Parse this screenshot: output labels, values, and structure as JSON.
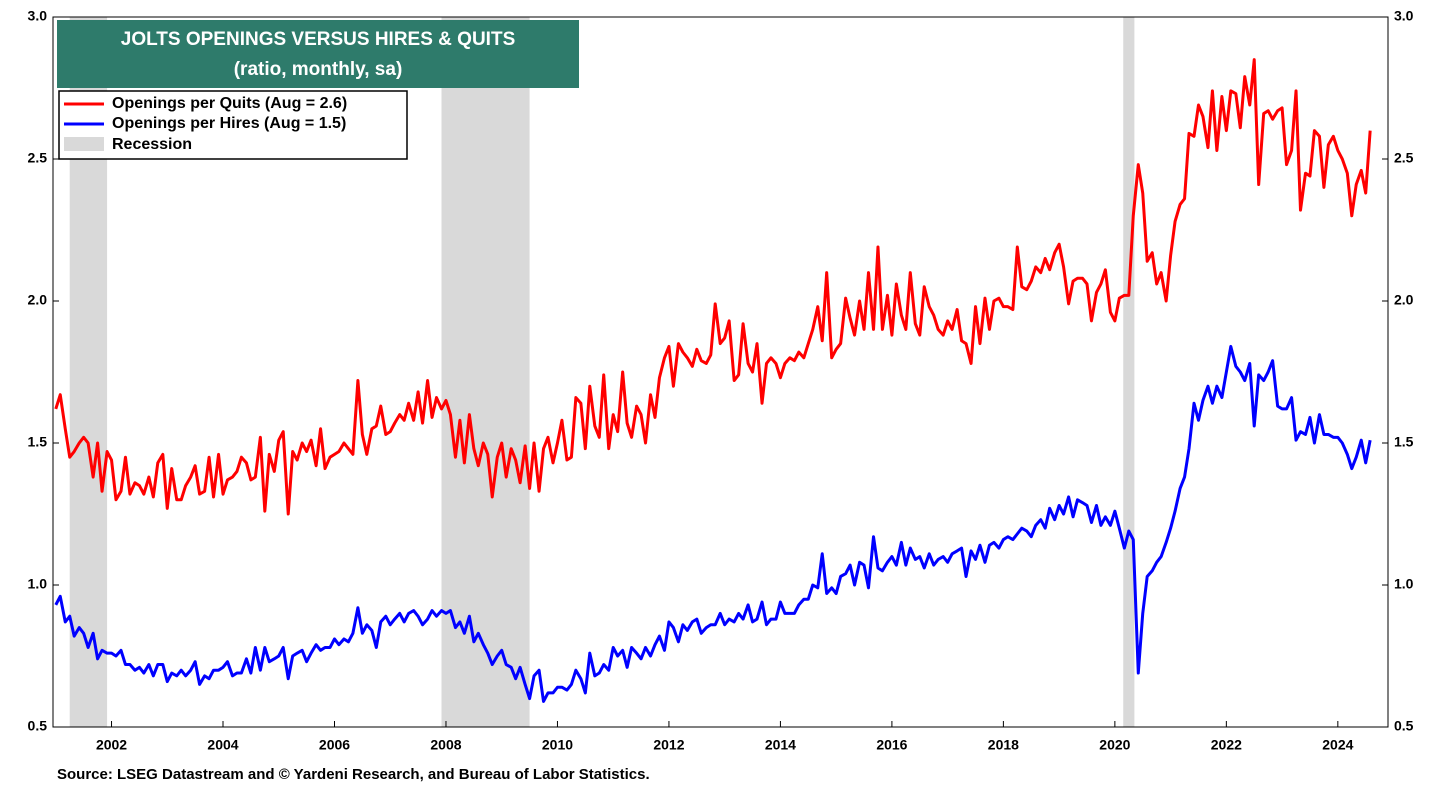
{
  "chart_data": {
    "type": "line",
    "title": "JOLTS OPENINGS VERSUS HIRES & QUITS",
    "subtitle": "(ratio, monthly, sa)",
    "source": "Source: LSEG Datastream and © Yardeni Research, and Bureau of Labor Statistics.",
    "recession_label": "Recession",
    "recession_color": "#d9d9d9",
    "recessions": [
      [
        2001.25,
        2001.92
      ],
      [
        2007.92,
        2009.5
      ],
      [
        2020.15,
        2020.35
      ]
    ],
    "xlim": [
      2000.95,
      2024.9
    ],
    "xticks": [
      2002,
      2004,
      2006,
      2008,
      2010,
      2012,
      2014,
      2016,
      2018,
      2020,
      2022,
      2024
    ],
    "ylim": [
      0.5,
      3.0
    ],
    "yticks": [
      {
        "value": 0.5,
        "label": "0.5"
      },
      {
        "value": 1,
        "label": "1.0"
      },
      {
        "value": 1.5,
        "label": "1.5"
      },
      {
        "value": 2,
        "label": "2.0"
      },
      {
        "value": 2.5,
        "label": "2.5"
      },
      {
        "value": 3,
        "label": "3.0"
      }
    ],
    "y2lim": [
      0.5,
      3.0
    ],
    "y2ticks": [
      {
        "value": 0.5,
        "label": "0.5"
      },
      {
        "value": 1,
        "label": "1.0"
      },
      {
        "value": 1.5,
        "label": "1.5"
      },
      {
        "value": 2,
        "label": "2.0"
      },
      {
        "value": 2.5,
        "label": "2.5"
      },
      {
        "value": 3,
        "label": "3.0"
      }
    ],
    "grid": false,
    "legend": "upper left",
    "x": [
      2001,
      2001.08,
      2001.17,
      2001.25,
      2001.33,
      2001.42,
      2001.5,
      2001.58,
      2001.67,
      2001.75,
      2001.83,
      2001.92,
      2002,
      2002.08,
      2002.17,
      2002.25,
      2002.33,
      2002.42,
      2002.5,
      2002.58,
      2002.67,
      2002.75,
      2002.83,
      2002.92,
      2003,
      2003.08,
      2003.17,
      2003.25,
      2003.33,
      2003.42,
      2003.5,
      2003.58,
      2003.67,
      2003.75,
      2003.83,
      2003.92,
      2004,
      2004.08,
      2004.17,
      2004.25,
      2004.33,
      2004.42,
      2004.5,
      2004.58,
      2004.67,
      2004.75,
      2004.83,
      2004.92,
      2005,
      2005.08,
      2005.17,
      2005.25,
      2005.33,
      2005.42,
      2005.5,
      2005.58,
      2005.67,
      2005.75,
      2005.83,
      2005.92,
      2006,
      2006.08,
      2006.17,
      2006.25,
      2006.33,
      2006.42,
      2006.5,
      2006.58,
      2006.67,
      2006.75,
      2006.83,
      2006.92,
      2007,
      2007.08,
      2007.17,
      2007.25,
      2007.33,
      2007.42,
      2007.5,
      2007.58,
      2007.67,
      2007.75,
      2007.83,
      2007.92,
      2008,
      2008.08,
      2008.17,
      2008.25,
      2008.33,
      2008.42,
      2008.5,
      2008.58,
      2008.67,
      2008.75,
      2008.83,
      2008.92,
      2009,
      2009.08,
      2009.17,
      2009.25,
      2009.33,
      2009.42,
      2009.5,
      2009.58,
      2009.67,
      2009.75,
      2009.83,
      2009.92,
      2010,
      2010.08,
      2010.17,
      2010.25,
      2010.33,
      2010.42,
      2010.5,
      2010.58,
      2010.67,
      2010.75,
      2010.83,
      2010.92,
      2011,
      2011.08,
      2011.17,
      2011.25,
      2011.33,
      2011.42,
      2011.5,
      2011.58,
      2011.67,
      2011.75,
      2011.83,
      2011.92,
      2012,
      2012.08,
      2012.17,
      2012.25,
      2012.33,
      2012.42,
      2012.5,
      2012.58,
      2012.67,
      2012.75,
      2012.83,
      2012.92,
      2013,
      2013.08,
      2013.17,
      2013.25,
      2013.33,
      2013.42,
      2013.5,
      2013.58,
      2013.67,
      2013.75,
      2013.83,
      2013.92,
      2014,
      2014.08,
      2014.17,
      2014.25,
      2014.33,
      2014.42,
      2014.5,
      2014.58,
      2014.67,
      2014.75,
      2014.83,
      2014.92,
      2015,
      2015.08,
      2015.17,
      2015.25,
      2015.33,
      2015.42,
      2015.5,
      2015.58,
      2015.67,
      2015.75,
      2015.83,
      2015.92,
      2016,
      2016.08,
      2016.17,
      2016.25,
      2016.33,
      2016.42,
      2016.5,
      2016.58,
      2016.67,
      2016.75,
      2016.83,
      2016.92,
      2017,
      2017.08,
      2017.17,
      2017.25,
      2017.33,
      2017.42,
      2017.5,
      2017.58,
      2017.67,
      2017.75,
      2017.83,
      2017.92,
      2018,
      2018.08,
      2018.17,
      2018.25,
      2018.33,
      2018.42,
      2018.5,
      2018.58,
      2018.67,
      2018.75,
      2018.83,
      2018.92,
      2019,
      2019.08,
      2019.17,
      2019.25,
      2019.33,
      2019.42,
      2019.5,
      2019.58,
      2019.67,
      2019.75,
      2019.83,
      2019.92,
      2020,
      2020.08,
      2020.17,
      2020.25,
      2020.33,
      2020.42,
      2020.5,
      2020.58,
      2020.67,
      2020.75,
      2020.83,
      2020.92,
      2021,
      2021.08,
      2021.17,
      2021.25,
      2021.33,
      2021.42,
      2021.5,
      2021.58,
      2021.67,
      2021.75,
      2021.83,
      2021.92,
      2022,
      2022.08,
      2022.17,
      2022.25,
      2022.33,
      2022.42,
      2022.5,
      2022.58,
      2022.67,
      2022.75,
      2022.83,
      2022.92,
      2023,
      2023.08,
      2023.17,
      2023.25,
      2023.33,
      2023.42,
      2023.5,
      2023.58,
      2023.67,
      2023.75,
      2023.83,
      2023.92,
      2024,
      2024.08,
      2024.17,
      2024.25,
      2024.33,
      2024.42,
      2024.5,
      2024.58
    ],
    "series": [
      {
        "name": "Openings per Quits (Aug = 2.6)",
        "color": "#ff0000",
        "values": [
          1.62,
          1.67,
          1.55,
          1.45,
          1.47,
          1.5,
          1.52,
          1.5,
          1.38,
          1.5,
          1.33,
          1.47,
          1.44,
          1.3,
          1.33,
          1.45,
          1.32,
          1.36,
          1.35,
          1.32,
          1.38,
          1.31,
          1.43,
          1.46,
          1.27,
          1.41,
          1.3,
          1.3,
          1.35,
          1.38,
          1.42,
          1.32,
          1.33,
          1.45,
          1.31,
          1.46,
          1.32,
          1.37,
          1.38,
          1.4,
          1.45,
          1.43,
          1.37,
          1.38,
          1.52,
          1.26,
          1.46,
          1.4,
          1.51,
          1.54,
          1.25,
          1.47,
          1.44,
          1.5,
          1.47,
          1.51,
          1.42,
          1.55,
          1.41,
          1.45,
          1.46,
          1.47,
          1.5,
          1.48,
          1.46,
          1.72,
          1.53,
          1.46,
          1.55,
          1.56,
          1.63,
          1.53,
          1.54,
          1.57,
          1.6,
          1.58,
          1.64,
          1.58,
          1.68,
          1.57,
          1.72,
          1.59,
          1.66,
          1.62,
          1.65,
          1.6,
          1.45,
          1.58,
          1.43,
          1.6,
          1.48,
          1.42,
          1.5,
          1.46,
          1.31,
          1.45,
          1.5,
          1.38,
          1.48,
          1.44,
          1.36,
          1.49,
          1.34,
          1.5,
          1.33,
          1.48,
          1.52,
          1.43,
          1.5,
          1.58,
          1.44,
          1.45,
          1.66,
          1.64,
          1.48,
          1.7,
          1.56,
          1.52,
          1.74,
          1.48,
          1.6,
          1.54,
          1.75,
          1.57,
          1.52,
          1.63,
          1.6,
          1.5,
          1.67,
          1.59,
          1.73,
          1.8,
          1.84,
          1.7,
          1.85,
          1.82,
          1.8,
          1.77,
          1.83,
          1.79,
          1.78,
          1.81,
          1.99,
          1.85,
          1.87,
          1.93,
          1.72,
          1.74,
          1.92,
          1.78,
          1.75,
          1.85,
          1.64,
          1.78,
          1.8,
          1.78,
          1.73,
          1.78,
          1.8,
          1.79,
          1.82,
          1.8,
          1.85,
          1.9,
          1.98,
          1.86,
          2.1,
          1.8,
          1.83,
          1.85,
          2.01,
          1.94,
          1.88,
          2.0,
          1.9,
          2.1,
          1.9,
          2.19,
          1.9,
          2.02,
          1.88,
          2.06,
          1.95,
          1.9,
          2.1,
          1.92,
          1.88,
          2.05,
          1.98,
          1.95,
          1.9,
          1.88,
          1.93,
          1.9,
          1.97,
          1.86,
          1.85,
          1.78,
          1.98,
          1.85,
          2.01,
          1.9,
          2.0,
          2.01,
          1.98,
          1.98,
          1.97,
          2.19,
          2.05,
          2.04,
          2.07,
          2.12,
          2.1,
          2.15,
          2.11,
          2.17,
          2.2,
          2.12,
          1.99,
          2.07,
          2.08,
          2.08,
          2.06,
          1.93,
          2.03,
          2.06,
          2.11,
          1.96,
          1.93,
          2.01,
          2.02,
          2.02,
          2.3,
          2.48,
          2.38,
          2.14,
          2.17,
          2.06,
          2.1,
          2.0,
          2.16,
          2.28,
          2.34,
          2.36,
          2.59,
          2.58,
          2.69,
          2.65,
          2.54,
          2.74,
          2.53,
          2.72,
          2.6,
          2.74,
          2.73,
          2.61,
          2.79,
          2.69,
          2.85,
          2.41,
          2.66,
          2.67,
          2.64,
          2.67,
          2.68,
          2.48,
          2.53,
          2.74,
          2.32,
          2.45,
          2.44,
          2.6,
          2.58,
          2.4,
          2.55,
          2.58,
          2.53,
          2.5,
          2.45,
          2.3,
          2.41,
          2.46,
          2.38,
          2.6
        ]
      },
      {
        "name": "Openings per Hires (Aug = 1.5)",
        "color": "#0000ff",
        "values": [
          0.93,
          0.96,
          0.87,
          0.89,
          0.82,
          0.85,
          0.83,
          0.78,
          0.83,
          0.74,
          0.77,
          0.76,
          0.76,
          0.75,
          0.77,
          0.72,
          0.72,
          0.7,
          0.71,
          0.69,
          0.72,
          0.68,
          0.72,
          0.72,
          0.66,
          0.69,
          0.68,
          0.7,
          0.68,
          0.7,
          0.73,
          0.65,
          0.68,
          0.67,
          0.7,
          0.7,
          0.71,
          0.73,
          0.68,
          0.69,
          0.69,
          0.74,
          0.69,
          0.78,
          0.7,
          0.78,
          0.73,
          0.74,
          0.75,
          0.78,
          0.67,
          0.75,
          0.76,
          0.77,
          0.73,
          0.76,
          0.79,
          0.77,
          0.78,
          0.78,
          0.81,
          0.79,
          0.81,
          0.8,
          0.83,
          0.92,
          0.83,
          0.86,
          0.84,
          0.78,
          0.87,
          0.89,
          0.86,
          0.88,
          0.9,
          0.87,
          0.9,
          0.91,
          0.89,
          0.86,
          0.88,
          0.91,
          0.89,
          0.91,
          0.9,
          0.91,
          0.85,
          0.87,
          0.83,
          0.89,
          0.8,
          0.83,
          0.79,
          0.76,
          0.72,
          0.75,
          0.77,
          0.72,
          0.71,
          0.67,
          0.71,
          0.65,
          0.6,
          0.68,
          0.7,
          0.59,
          0.62,
          0.62,
          0.64,
          0.64,
          0.63,
          0.65,
          0.7,
          0.67,
          0.62,
          0.76,
          0.68,
          0.69,
          0.72,
          0.7,
          0.78,
          0.75,
          0.77,
          0.71,
          0.78,
          0.76,
          0.74,
          0.78,
          0.75,
          0.79,
          0.82,
          0.77,
          0.87,
          0.85,
          0.8,
          0.86,
          0.84,
          0.87,
          0.88,
          0.83,
          0.85,
          0.86,
          0.86,
          0.9,
          0.86,
          0.88,
          0.87,
          0.9,
          0.88,
          0.93,
          0.87,
          0.88,
          0.94,
          0.86,
          0.88,
          0.88,
          0.94,
          0.9,
          0.9,
          0.9,
          0.93,
          0.95,
          0.95,
          1.0,
          0.99,
          1.11,
          0.97,
          0.99,
          0.97,
          1.03,
          1.04,
          1.07,
          1.0,
          1.08,
          1.07,
          0.99,
          1.17,
          1.06,
          1.05,
          1.08,
          1.1,
          1.07,
          1.15,
          1.07,
          1.13,
          1.09,
          1.1,
          1.06,
          1.11,
          1.07,
          1.09,
          1.1,
          1.08,
          1.11,
          1.12,
          1.13,
          1.03,
          1.12,
          1.09,
          1.14,
          1.08,
          1.14,
          1.15,
          1.13,
          1.16,
          1.17,
          1.16,
          1.18,
          1.2,
          1.19,
          1.17,
          1.21,
          1.23,
          1.2,
          1.27,
          1.23,
          1.28,
          1.25,
          1.31,
          1.24,
          1.3,
          1.29,
          1.28,
          1.22,
          1.28,
          1.21,
          1.24,
          1.21,
          1.26,
          1.2,
          1.13,
          1.19,
          1.16,
          0.69,
          0.9,
          1.03,
          1.05,
          1.08,
          1.1,
          1.15,
          1.2,
          1.26,
          1.34,
          1.38,
          1.48,
          1.64,
          1.58,
          1.65,
          1.7,
          1.64,
          1.7,
          1.66,
          1.75,
          1.84,
          1.77,
          1.75,
          1.72,
          1.78,
          1.56,
          1.74,
          1.72,
          1.75,
          1.79,
          1.63,
          1.62,
          1.62,
          1.66,
          1.51,
          1.54,
          1.53,
          1.59,
          1.5,
          1.6,
          1.53,
          1.53,
          1.52,
          1.52,
          1.5,
          1.46,
          1.41,
          1.45,
          1.51,
          1.43,
          1.51
        ]
      }
    ]
  }
}
